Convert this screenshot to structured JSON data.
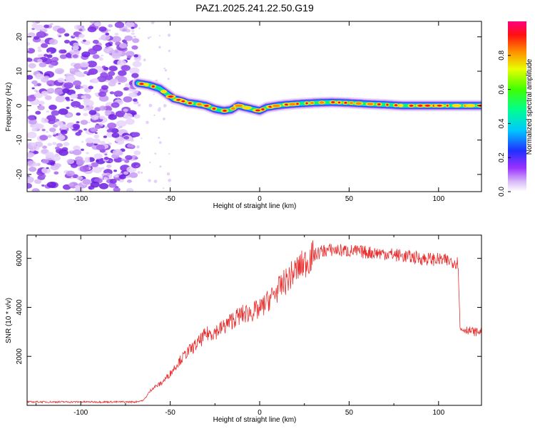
{
  "title": "PAZ1.2025.241.22.50.G19",
  "chart_data": [
    {
      "type": "heatmap",
      "title": "PAZ1.2025.241.22.50.G19",
      "xlabel": "Height of straight line (km)",
      "ylabel": "Frequency (Hz)",
      "xlim": [
        -130,
        124
      ],
      "ylim": [
        -25,
        24.5
      ],
      "xticks": [
        -100,
        -50,
        0,
        50,
        100
      ],
      "yticks": [
        -20,
        -10,
        0,
        10,
        20
      ],
      "noise_region_x": [
        -130,
        -68
      ],
      "ridge": {
        "x": [
          -68,
          -62,
          -56,
          -52,
          -48,
          -44,
          -40,
          -35,
          -30,
          -25,
          -20,
          -16,
          -12,
          -8,
          -4,
          0,
          4,
          10,
          15,
          20,
          30,
          40,
          50,
          60,
          70,
          80,
          90,
          100,
          110,
          124
        ],
        "freq": [
          6.5,
          6,
          5,
          3.5,
          2,
          1.5,
          0.8,
          0.5,
          0,
          -1,
          -1.5,
          -1.2,
          0,
          -0.5,
          -1,
          -1.5,
          -0.5,
          0,
          0.3,
          0.5,
          0.8,
          1,
          0.8,
          0.5,
          0.3,
          0,
          0,
          0,
          0,
          0
        ]
      },
      "colorbar": {
        "label": "Normalized spectral amplitude",
        "range": [
          0.0,
          1.0
        ],
        "ticks": [
          "0.0",
          "0.2",
          "0.4",
          "0.6",
          "0.8"
        ]
      }
    },
    {
      "type": "line",
      "xlabel": "Height of straight line (km)",
      "ylabel": "SNR (10 * v/v)",
      "xlim": [
        -130,
        124
      ],
      "ylim": [
        0,
        6950
      ],
      "xticks": [
        -100,
        -50,
        0,
        50,
        100
      ],
      "yticks": [
        2000,
        4000,
        6000
      ],
      "color": "#e83030",
      "series": [
        {
          "name": "SNR",
          "x": [
            -130,
            -110,
            -90,
            -70,
            -65,
            -60,
            -55,
            -50,
            -45,
            -40,
            -35,
            -30,
            -25,
            -20,
            -15,
            -10,
            -5,
            0,
            5,
            10,
            15,
            20,
            25,
            30,
            35,
            40,
            50,
            60,
            70,
            80,
            90,
            100,
            105,
            110,
            111,
            112,
            115,
            120,
            124
          ],
          "values": [
            140,
            140,
            140,
            140,
            200,
            700,
            900,
            1300,
            1800,
            2200,
            2500,
            2900,
            3000,
            3200,
            3500,
            3700,
            3800,
            3900,
            4300,
            4700,
            5100,
            5500,
            5800,
            6100,
            6300,
            6350,
            6300,
            6250,
            6200,
            6100,
            6000,
            5950,
            5900,
            5850,
            5800,
            3100,
            3100,
            3000,
            3000
          ]
        }
      ]
    }
  ]
}
